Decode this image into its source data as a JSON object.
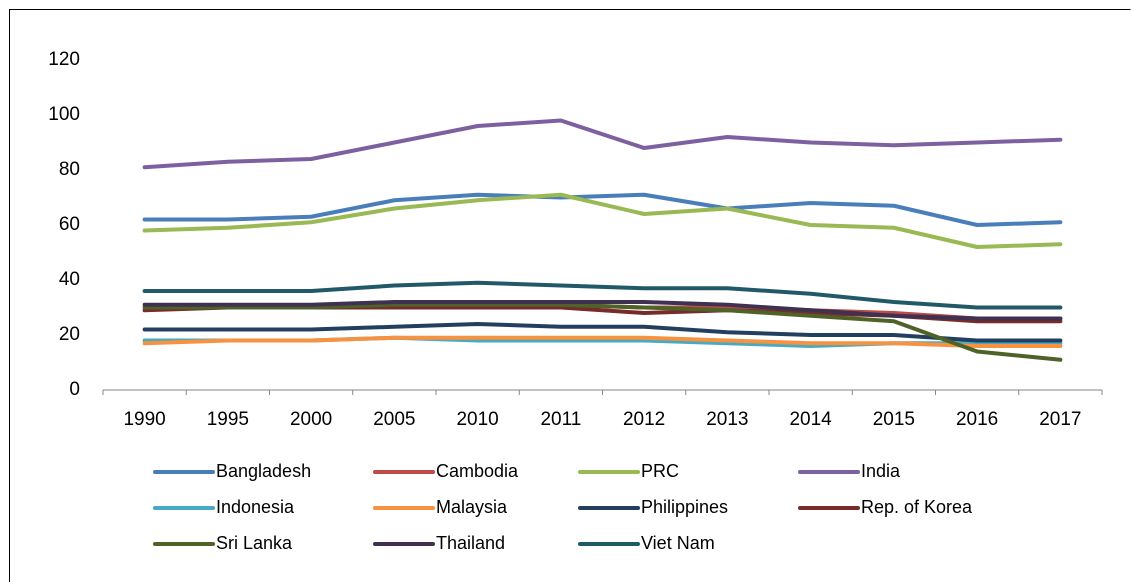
{
  "chart_data": {
    "type": "line",
    "categories": [
      "1990",
      "1995",
      "2000",
      "2005",
      "2010",
      "2011",
      "2012",
      "2013",
      "2014",
      "2015",
      "2016",
      "2017"
    ],
    "ylim": [
      0,
      120
    ],
    "yticks": [
      0,
      20,
      40,
      60,
      80,
      100,
      120
    ],
    "grid": false,
    "legend": "bottom",
    "series": [
      {
        "name": "Bangladesh",
        "color": "#4a7ebb",
        "values": [
          62,
          62,
          63,
          69,
          71,
          70,
          71,
          66,
          68,
          67,
          60,
          61
        ]
      },
      {
        "name": "Cambodia",
        "color": "#be4b48",
        "values": [
          30,
          30,
          30,
          31,
          31,
          31,
          30,
          30,
          29,
          28,
          26,
          26
        ]
      },
      {
        "name": "PRC",
        "color": "#98b954",
        "values": [
          58,
          59,
          61,
          66,
          69,
          71,
          64,
          66,
          60,
          59,
          52,
          53
        ]
      },
      {
        "name": "India",
        "color": "#7d60a0",
        "values": [
          81,
          83,
          84,
          90,
          96,
          98,
          88,
          92,
          90,
          89,
          90,
          91
        ]
      },
      {
        "name": "Indonesia",
        "color": "#46aac5",
        "values": [
          18,
          18,
          18,
          19,
          18,
          18,
          18,
          17,
          16,
          17,
          17,
          17
        ]
      },
      {
        "name": "Malaysia",
        "color": "#f69240",
        "values": [
          17,
          18,
          18,
          19,
          19,
          19,
          19,
          18,
          17,
          17,
          16,
          16
        ]
      },
      {
        "name": "Philippines",
        "color": "#233f60",
        "values": [
          22,
          22,
          22,
          23,
          24,
          23,
          23,
          21,
          20,
          20,
          18,
          18
        ]
      },
      {
        "name": "Rep. of Korea",
        "color": "#772c2a",
        "values": [
          29,
          30,
          30,
          30,
          30,
          30,
          28,
          29,
          28,
          27,
          25,
          25
        ]
      },
      {
        "name": "Sri Lanka",
        "color": "#4f6228",
        "values": [
          30,
          30,
          30,
          31,
          31,
          31,
          30,
          29,
          27,
          25,
          14,
          11
        ]
      },
      {
        "name": "Thailand",
        "color": "#3f3151",
        "values": [
          31,
          31,
          31,
          32,
          32,
          32,
          32,
          31,
          29,
          27,
          26,
          26
        ]
      },
      {
        "name": "Viet Nam",
        "color": "#215968",
        "values": [
          36,
          36,
          36,
          38,
          39,
          38,
          37,
          37,
          35,
          32,
          30,
          30
        ]
      }
    ]
  }
}
